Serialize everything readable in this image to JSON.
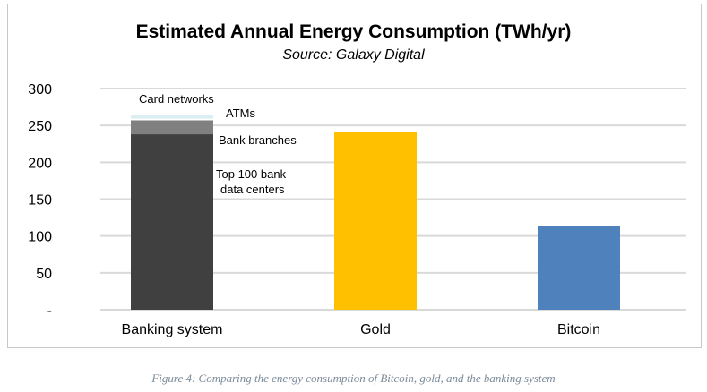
{
  "chart_data": {
    "type": "bar",
    "stacked": true,
    "title": "Estimated Annual Energy Consumption (TWh/yr)",
    "subtitle": "Source: Galaxy Digital",
    "xlabel": "",
    "ylabel": "",
    "ylim": [
      0,
      300
    ],
    "yticks": [
      0,
      50,
      100,
      150,
      200,
      250,
      300
    ],
    "ytick_labels": [
      "-",
      "50",
      "100",
      "150",
      "200",
      "250",
      "300"
    ],
    "grid": true,
    "legend": "none",
    "categories": [
      "Banking system",
      "Gold",
      "Bitcoin"
    ],
    "series": [
      {
        "name": "Top 100 bank data centers",
        "label": [
          "Top 100 bank",
          "data centers"
        ],
        "values": [
          238,
          240.6,
          113.9
        ],
        "colors": [
          "#404040",
          "#ffc000",
          "#4f81bd"
        ]
      },
      {
        "name": "Bank branches",
        "label": [
          "Bank branches"
        ],
        "values": [
          19,
          0,
          0
        ],
        "colors": [
          "#808080"
        ]
      },
      {
        "name": "ATMs",
        "label": [
          "ATMs"
        ],
        "values": [
          2.3,
          0,
          0
        ],
        "colors": [
          "#ffffff"
        ]
      },
      {
        "name": "Card networks",
        "label": [
          "Card networks"
        ],
        "values": [
          4.6,
          0,
          0
        ],
        "colors": [
          "#daeef3"
        ]
      }
    ]
  },
  "caption": "Figure 4: Comparing the energy consumption of Bitcoin, gold, and the banking system"
}
